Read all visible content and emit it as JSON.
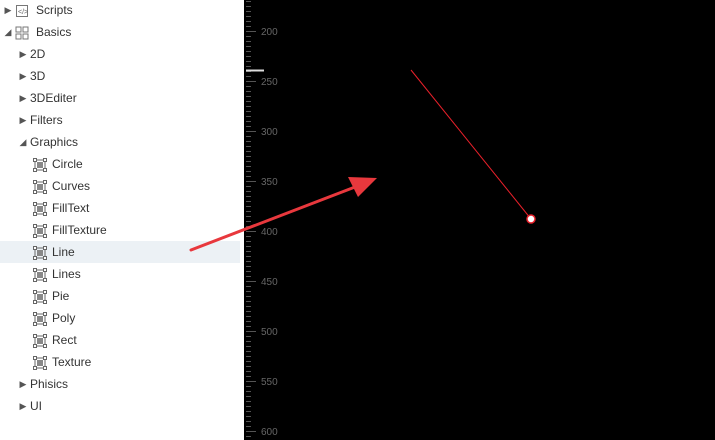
{
  "tree": {
    "items": [
      {
        "label": "Scripts",
        "icon": "script-icon",
        "level": 0,
        "expanded": false
      },
      {
        "label": "Basics",
        "icon": "grid-icon",
        "level": 0,
        "expanded": true
      },
      {
        "label": "2D",
        "level": 1,
        "expanded": false
      },
      {
        "label": "3D",
        "level": 1,
        "expanded": false
      },
      {
        "label": "3DEditer",
        "level": 1,
        "expanded": false
      },
      {
        "label": "Filters",
        "level": 1,
        "expanded": false
      },
      {
        "label": "Graphics",
        "level": 1,
        "expanded": true
      },
      {
        "label": "Circle",
        "icon": "node-icon",
        "level": 2
      },
      {
        "label": "Curves",
        "icon": "node-icon",
        "level": 2
      },
      {
        "label": "FillText",
        "icon": "node-icon",
        "level": 2
      },
      {
        "label": "FillTexture",
        "icon": "node-icon",
        "level": 2
      },
      {
        "label": "Line",
        "icon": "node-icon",
        "level": 2,
        "selected": true
      },
      {
        "label": "Lines",
        "icon": "node-icon",
        "level": 2
      },
      {
        "label": "Pie",
        "icon": "node-icon",
        "level": 2
      },
      {
        "label": "Poly",
        "icon": "node-icon",
        "level": 2
      },
      {
        "label": "Rect",
        "icon": "node-icon",
        "level": 2
      },
      {
        "label": "Texture",
        "icon": "node-icon",
        "level": 2
      },
      {
        "label": "Phisics",
        "level": 1,
        "expanded": false
      },
      {
        "label": "UI",
        "level": 1,
        "expanded": false
      }
    ]
  },
  "ruler": {
    "labels": [
      "200",
      "250",
      "300",
      "350",
      "400",
      "450",
      "500",
      "550",
      "600"
    ]
  },
  "colors": {
    "line": "#e8202a",
    "arrow": "#e8383d",
    "canvas_bg": "#000000",
    "selected_bg": "#ecf1f5"
  }
}
